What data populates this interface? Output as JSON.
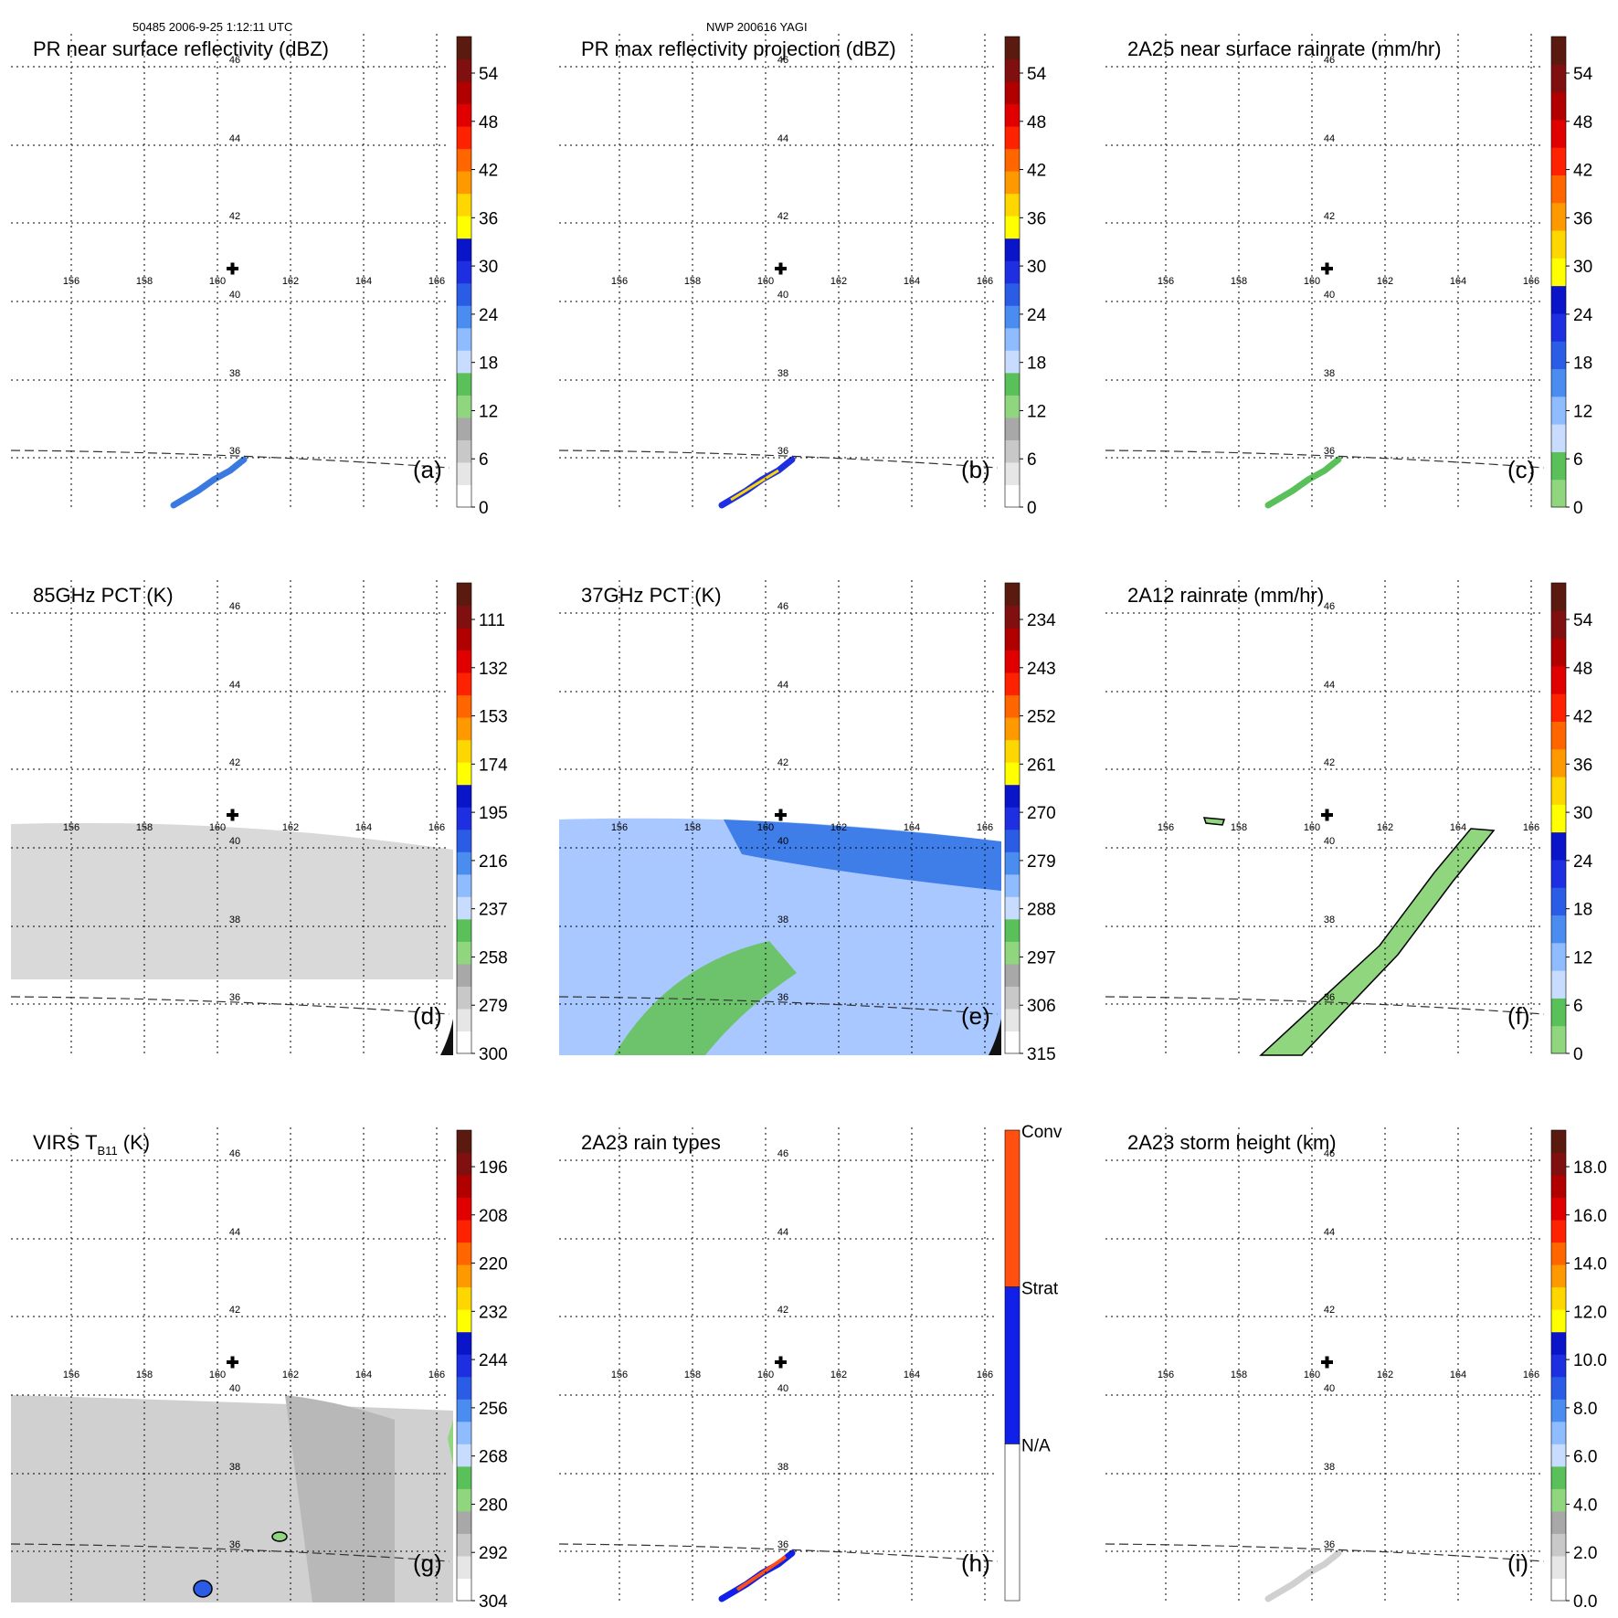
{
  "header": {
    "left": "50485 2006-9-25 1:12:11 UTC",
    "center": "NWP 200616 YAGI"
  },
  "map": {
    "lon_ticks": [
      "156",
      "158",
      "160",
      "162",
      "164",
      "166"
    ],
    "lat_ticks": [
      "46",
      "44",
      "42",
      "40",
      "38",
      "36"
    ],
    "center_marker": "plus-marker"
  },
  "chart_data": [
    {
      "type": "heatmap",
      "id": "a",
      "title": "PR near surface reflectivity (dBZ)",
      "label": "(a)",
      "colorbar_ticks": [
        "0",
        "6",
        "12",
        "18",
        "24",
        "30",
        "36",
        "42",
        "48",
        "54"
      ],
      "colors": [
        "#ffffff",
        "#e6e6e6",
        "#c8c8c8",
        "#a8a8a8",
        "#8fd67f",
        "#5ac05a",
        "#c8dcff",
        "#8ebcff",
        "#4a8cf0",
        "#2a5ce6",
        "#1d2fe0",
        "#0a14c8",
        "#ffff00",
        "#ffd700",
        "#ff9900",
        "#ff6600",
        "#ff2200",
        "#e00000",
        "#b00000",
        "#801010",
        "#5a1a10"
      ]
    },
    {
      "type": "heatmap",
      "id": "b",
      "title": "PR max reflectivity projection (dBZ)",
      "label": "(b)",
      "colorbar_ticks": [
        "0",
        "6",
        "12",
        "18",
        "24",
        "30",
        "36",
        "42",
        "48",
        "54"
      ],
      "colors": [
        "#ffffff",
        "#e6e6e6",
        "#c8c8c8",
        "#a8a8a8",
        "#8fd67f",
        "#5ac05a",
        "#c8dcff",
        "#8ebcff",
        "#4a8cf0",
        "#2a5ce6",
        "#1d2fe0",
        "#0a14c8",
        "#ffff00",
        "#ffd700",
        "#ff9900",
        "#ff6600",
        "#ff2200",
        "#e00000",
        "#b00000",
        "#801010",
        "#5a1a10"
      ]
    },
    {
      "type": "heatmap",
      "id": "c",
      "title": "2A25 near surface rainrate (mm/hr)",
      "label": "(c)",
      "colorbar_ticks": [
        "0",
        "6",
        "12",
        "18",
        "24",
        "30",
        "36",
        "42",
        "48",
        "54"
      ],
      "colors": [
        "#8fd67f",
        "#5ac05a",
        "#c8dcff",
        "#8ebcff",
        "#4a8cf0",
        "#2a5ce6",
        "#1d2fe0",
        "#0a14c8",
        "#ffff00",
        "#ffd700",
        "#ff9900",
        "#ff6600",
        "#ff2200",
        "#e00000",
        "#b00000",
        "#801010",
        "#5a1a10"
      ]
    },
    {
      "type": "heatmap",
      "id": "d",
      "title": "85GHz PCT (K)",
      "label": "(d)",
      "colorbar_ticks": [
        "300",
        "279",
        "258",
        "237",
        "216",
        "195",
        "174",
        "153",
        "132",
        "111"
      ],
      "colors": [
        "#ffffff",
        "#e6e6e6",
        "#c8c8c8",
        "#a8a8a8",
        "#8fd67f",
        "#5ac05a",
        "#c8dcff",
        "#8ebcff",
        "#4a8cf0",
        "#2a5ce6",
        "#1d2fe0",
        "#0a14c8",
        "#ffff00",
        "#ffd700",
        "#ff9900",
        "#ff6600",
        "#ff2200",
        "#e00000",
        "#b00000",
        "#801010",
        "#5a1a10"
      ]
    },
    {
      "type": "heatmap",
      "id": "e",
      "title": "37GHz PCT (K)",
      "label": "(e)",
      "colorbar_ticks": [
        "315",
        "306",
        "297",
        "288",
        "279",
        "270",
        "261",
        "252",
        "243",
        "234"
      ],
      "colors": [
        "#ffffff",
        "#e6e6e6",
        "#c8c8c8",
        "#a8a8a8",
        "#8fd67f",
        "#5ac05a",
        "#c8dcff",
        "#8ebcff",
        "#4a8cf0",
        "#2a5ce6",
        "#1d2fe0",
        "#0a14c8",
        "#ffff00",
        "#ffd700",
        "#ff9900",
        "#ff6600",
        "#ff2200",
        "#e00000",
        "#b00000",
        "#801010",
        "#5a1a10"
      ]
    },
    {
      "type": "heatmap",
      "id": "f",
      "title": "2A12 rainrate (mm/hr)",
      "label": "(f)",
      "colorbar_ticks": [
        "0",
        "6",
        "12",
        "18",
        "24",
        "30",
        "36",
        "42",
        "48",
        "54"
      ],
      "colors": [
        "#8fd67f",
        "#5ac05a",
        "#c8dcff",
        "#8ebcff",
        "#4a8cf0",
        "#2a5ce6",
        "#1d2fe0",
        "#0a14c8",
        "#ffff00",
        "#ffd700",
        "#ff9900",
        "#ff6600",
        "#ff2200",
        "#e00000",
        "#b00000",
        "#801010",
        "#5a1a10"
      ]
    },
    {
      "type": "heatmap",
      "id": "g",
      "title": "VIRS T",
      "title_sub": "B11",
      "title_suffix": " (K)",
      "label": "(g)",
      "colorbar_ticks": [
        "304",
        "292",
        "280",
        "268",
        "256",
        "244",
        "232",
        "220",
        "208",
        "196"
      ],
      "colors": [
        "#ffffff",
        "#e6e6e6",
        "#c8c8c8",
        "#a8a8a8",
        "#8fd67f",
        "#5ac05a",
        "#c8dcff",
        "#8ebcff",
        "#4a8cf0",
        "#2a5ce6",
        "#1d2fe0",
        "#0a14c8",
        "#ffff00",
        "#ffd700",
        "#ff9900",
        "#ff6600",
        "#ff2200",
        "#e00000",
        "#b00000",
        "#801010",
        "#5a1a10"
      ]
    },
    {
      "type": "heatmap",
      "id": "h",
      "title": "2A23 rain types",
      "label": "(h)",
      "colorbar_ticks": [
        "N/A",
        "Strat",
        "Conv"
      ],
      "categorical": true,
      "colors": [
        "#ffffff",
        "#1020e8",
        "#ff5010"
      ]
    },
    {
      "type": "heatmap",
      "id": "i",
      "title": "2A23 storm height (km)",
      "label": "(i)",
      "colorbar_ticks": [
        "0.0",
        "2.0",
        "4.0",
        "6.0",
        "8.0",
        "10.0",
        "12.0",
        "14.0",
        "16.0",
        "18.0"
      ],
      "colors": [
        "#ffffff",
        "#e6e6e6",
        "#c8c8c8",
        "#a8a8a8",
        "#8fd67f",
        "#5ac05a",
        "#c8dcff",
        "#8ebcff",
        "#4a8cf0",
        "#2a5ce6",
        "#1d2fe0",
        "#0a14c8",
        "#ffff00",
        "#ffd700",
        "#ff9900",
        "#ff6600",
        "#ff2200",
        "#e00000",
        "#b00000",
        "#801010",
        "#5a1a10"
      ]
    }
  ]
}
